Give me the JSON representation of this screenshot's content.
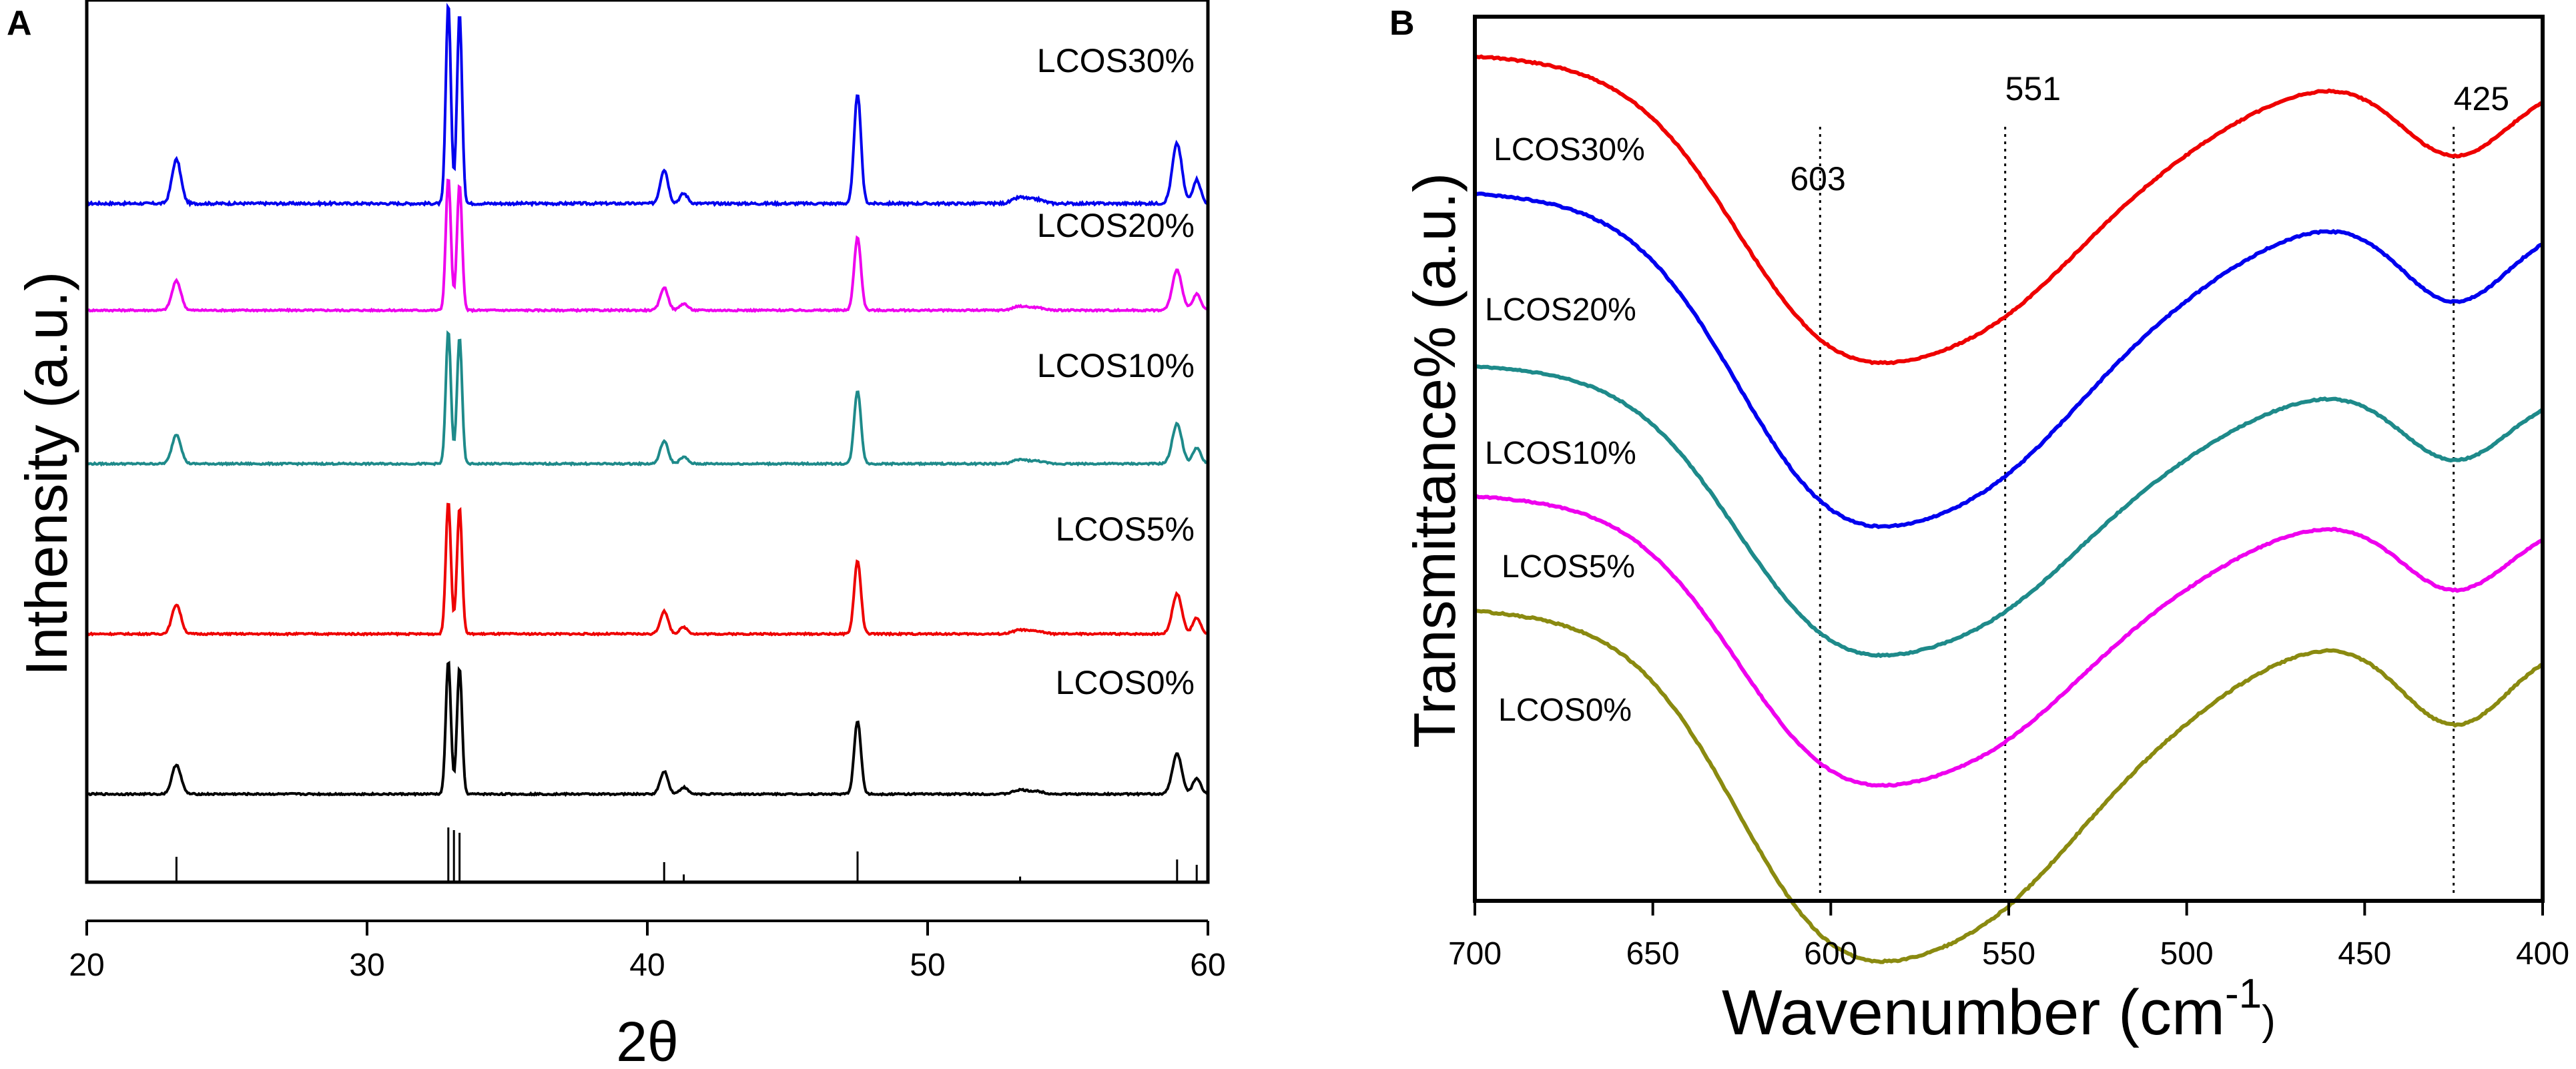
{
  "chart_data": [
    {
      "panel_label": "A",
      "type": "line",
      "title": "",
      "xlabel": "2θ",
      "ylabel": "Inthensity (a.u.)",
      "xlim": [
        20,
        60
      ],
      "x_ticks": [
        20,
        30,
        40,
        50,
        60
      ],
      "peak_positions_2theta": [
        23.2,
        32.9,
        33.3,
        40.6,
        41.3,
        47.5,
        53.3,
        53.9,
        58.9,
        59.6
      ],
      "reference_pattern": {
        "positions": [
          23.2,
          32.9,
          33.1,
          33.3,
          40.6,
          41.3,
          47.5,
          53.3,
          58.9,
          59.6
        ],
        "relative_heights": [
          0.45,
          1.0,
          0.95,
          0.9,
          0.35,
          0.12,
          0.55,
          0.08,
          0.4,
          0.3
        ]
      },
      "series": [
        {
          "name": "LCOS30%",
          "color": "#0000ee"
        },
        {
          "name": "LCOS20%",
          "color": "#ee00ee"
        },
        {
          "name": "LCOS10%",
          "color": "#1e8a8a"
        },
        {
          "name": "LCOS5%",
          "color": "#ee0000"
        },
        {
          "name": "LCOS0%",
          "color": "#000000"
        }
      ]
    },
    {
      "panel_label": "B",
      "type": "line",
      "title": "",
      "xlabel": "Wavenumber (cm",
      "xlabel_sup": "-1",
      "xlabel_close": ")",
      "ylabel": "Transmittance% (a.u.)",
      "xlim": [
        700,
        400
      ],
      "x_ticks": [
        700,
        650,
        600,
        550,
        500,
        450,
        400
      ],
      "annotations": [
        {
          "label": "603",
          "x": 603
        },
        {
          "label": "551",
          "x": 551
        },
        {
          "label": "425",
          "x": 425
        }
      ],
      "series": [
        {
          "name": "LCOS30%",
          "color": "#ee0000"
        },
        {
          "name": "LCOS20%",
          "color": "#0000ee"
        },
        {
          "name": "LCOS10%",
          "color": "#1e8a8a"
        },
        {
          "name": "LCOS5%",
          "color": "#ee00ee"
        },
        {
          "name": "LCOS0%",
          "color": "#8a8a10"
        }
      ]
    }
  ]
}
